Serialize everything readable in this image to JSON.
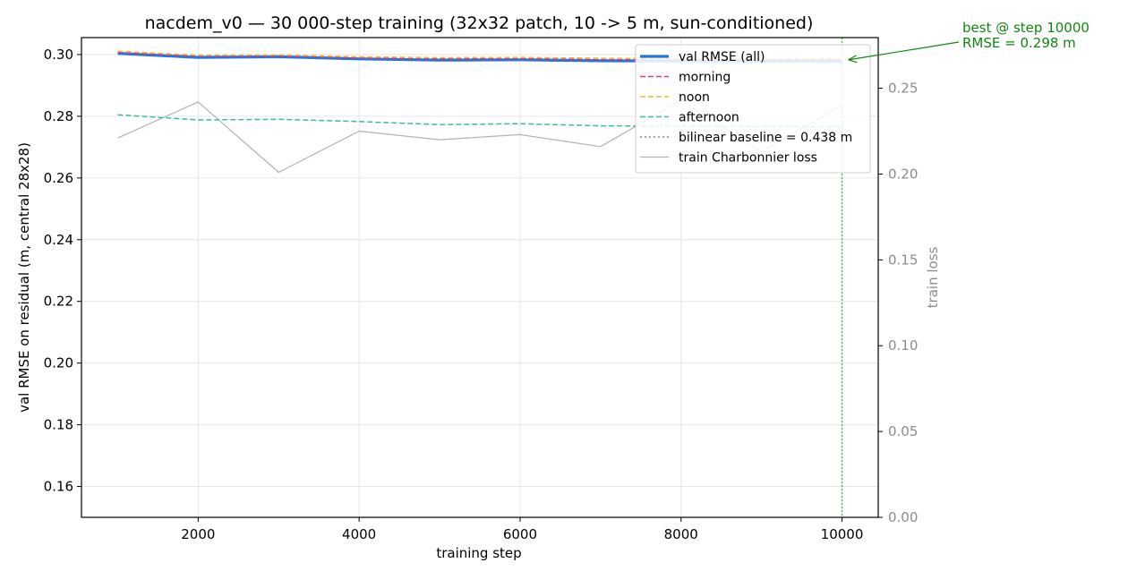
{
  "chart_data": {
    "type": "line",
    "title": "nacdem_v0 — 30 000-step training (32x32 patch, 10 -> 5 m, sun-conditioned)",
    "xlabel": "training step",
    "ylabel": "val RMSE on residual (m, central 28x28)",
    "y2label": "train loss",
    "xlim": [
      550,
      10450
    ],
    "ylim": [
      0.15,
      0.3055
    ],
    "y2lim": [
      0.0,
      0.2795
    ],
    "x_ticks": [
      2000,
      4000,
      6000,
      8000,
      10000
    ],
    "y_ticks": [
      0.16,
      0.18,
      0.2,
      0.22,
      0.24,
      0.26,
      0.28,
      0.3
    ],
    "y2_ticks": [
      0.0,
      0.05,
      0.1,
      0.15,
      0.2,
      0.25
    ],
    "grid": true,
    "legend_position": "top-right",
    "x": [
      1000,
      2000,
      3000,
      4000,
      5000,
      6000,
      7000,
      8000,
      9000,
      10000
    ],
    "series": [
      {
        "name": "val RMSE (all)",
        "axis": "left",
        "color": "#1f77e4",
        "style": "solid-thick",
        "values": [
          0.3004,
          0.2991,
          0.2993,
          0.2986,
          0.2982,
          0.2983,
          0.298,
          0.2979,
          0.2979,
          0.2979
        ]
      },
      {
        "name": "morning",
        "axis": "left",
        "color": "#e0338c",
        "style": "dashed",
        "values": [
          0.3007,
          0.2995,
          0.2996,
          0.2989,
          0.2986,
          0.2987,
          0.2984,
          0.2983,
          0.2983,
          0.2983
        ]
      },
      {
        "name": "noon",
        "axis": "left",
        "color": "#e8c02a",
        "style": "dashed",
        "values": [
          0.3011,
          0.2998,
          0.2999,
          0.2993,
          0.299,
          0.2991,
          0.2988,
          0.2987,
          0.2987,
          0.2987
        ]
      },
      {
        "name": "afternoon",
        "axis": "left",
        "color": "#3fbf93",
        "style": "dashed",
        "values": [
          0.2805,
          0.2788,
          0.279,
          0.2783,
          0.2773,
          0.2776,
          0.2769,
          0.2768,
          0.2767,
          0.2766
        ]
      },
      {
        "name": "bilinear baseline = 0.438 m",
        "axis": "left",
        "color": "#a8a8a8",
        "style": "dotted",
        "values": [
          0.438,
          0.438,
          0.438,
          0.438,
          0.438,
          0.438,
          0.438,
          0.438,
          0.438,
          0.438
        ]
      },
      {
        "name": "train Charbonnier loss",
        "axis": "right",
        "color": "#b3b3b3",
        "style": "solid-thin",
        "values": [
          0.221,
          0.242,
          0.201,
          0.225,
          0.22,
          0.223,
          0.216,
          0.243,
          0.213,
          0.24
        ]
      }
    ],
    "best_marker": {
      "x": 10000,
      "y": 0.298,
      "color": "#2ca02c"
    },
    "annotation": {
      "line1": "best @ step 10000",
      "line2": "RMSE = 0.298 m",
      "color": "#118811"
    }
  }
}
